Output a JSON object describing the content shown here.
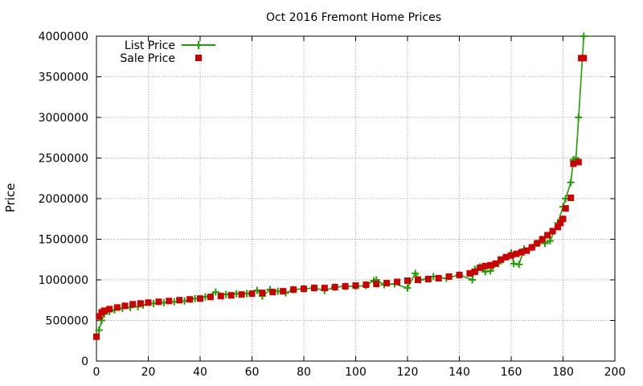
{
  "chart_data": {
    "type": "scatter",
    "title": "Oct 2016 Fremont Home Prices",
    "xlabel": "",
    "ylabel": "Price",
    "xlim": [
      0,
      200
    ],
    "ylim": [
      0,
      4000000
    ],
    "xticks": [
      0,
      20,
      40,
      60,
      80,
      100,
      120,
      140,
      160,
      180,
      200
    ],
    "yticks": [
      0,
      500000,
      1000000,
      1500000,
      2000000,
      2500000,
      3000000,
      3500000,
      4000000
    ],
    "grid": true,
    "legend_position": "top-left",
    "series": [
      {
        "name": "List Price",
        "style": "line-with-plus-markers",
        "color": "#1f9e00",
        "x": [
          1,
          2,
          3,
          5,
          7,
          10,
          13,
          16,
          18,
          22,
          26,
          30,
          34,
          38,
          42,
          46,
          50,
          54,
          58,
          62,
          64,
          67,
          70,
          73,
          76,
          80,
          84,
          88,
          92,
          96,
          100,
          104,
          107,
          108,
          111,
          115,
          120,
          123,
          125,
          130,
          135,
          140,
          145,
          146,
          148,
          150,
          152,
          155,
          157,
          160,
          161,
          163,
          165,
          168,
          170,
          173,
          175,
          178,
          180,
          181,
          183,
          184,
          185,
          186,
          188
        ],
        "y": [
          380000,
          500000,
          580000,
          610000,
          630000,
          650000,
          660000,
          670000,
          690000,
          710000,
          720000,
          730000,
          740000,
          770000,
          790000,
          850000,
          820000,
          830000,
          830000,
          870000,
          800000,
          880000,
          860000,
          840000,
          880000,
          890000,
          900000,
          870000,
          910000,
          920000,
          920000,
          930000,
          990000,
          1000000,
          940000,
          950000,
          900000,
          1080000,
          1000000,
          1040000,
          1020000,
          1060000,
          1000000,
          1130000,
          1160000,
          1100000,
          1110000,
          1200000,
          1250000,
          1330000,
          1200000,
          1190000,
          1380000,
          1400000,
          1450000,
          1450000,
          1480000,
          1700000,
          1900000,
          2000000,
          2200000,
          2480000,
          2500000,
          3000000,
          4000000
        ]
      },
      {
        "name": "Sale Price",
        "style": "square-markers",
        "color": "#cc0000",
        "x": [
          0,
          1,
          2,
          3,
          5,
          8,
          11,
          14,
          17,
          20,
          24,
          28,
          32,
          36,
          40,
          44,
          48,
          52,
          56,
          60,
          64,
          68,
          72,
          76,
          80,
          84,
          88,
          92,
          96,
          100,
          104,
          108,
          112,
          116,
          120,
          124,
          128,
          132,
          136,
          140,
          144,
          146,
          148,
          150,
          152,
          154,
          156,
          158,
          160,
          162,
          164,
          166,
          168,
          170,
          172,
          174,
          176,
          178,
          179,
          180,
          181,
          183,
          184,
          186,
          187,
          188
        ],
        "y": [
          300000,
          550000,
          600000,
          620000,
          640000,
          660000,
          680000,
          700000,
          710000,
          720000,
          730000,
          740000,
          750000,
          760000,
          770000,
          790000,
          800000,
          810000,
          820000,
          830000,
          840000,
          850000,
          860000,
          880000,
          890000,
          900000,
          900000,
          910000,
          920000,
          930000,
          940000,
          950000,
          960000,
          975000,
          990000,
          1000000,
          1010000,
          1020000,
          1040000,
          1060000,
          1080000,
          1100000,
          1150000,
          1170000,
          1180000,
          1200000,
          1250000,
          1280000,
          1300000,
          1320000,
          1340000,
          1360000,
          1400000,
          1450000,
          1500000,
          1550000,
          1600000,
          1650000,
          1700000,
          1750000,
          1880000,
          2010000,
          2430000,
          2450000,
          3730000,
          3730000
        ]
      }
    ]
  }
}
